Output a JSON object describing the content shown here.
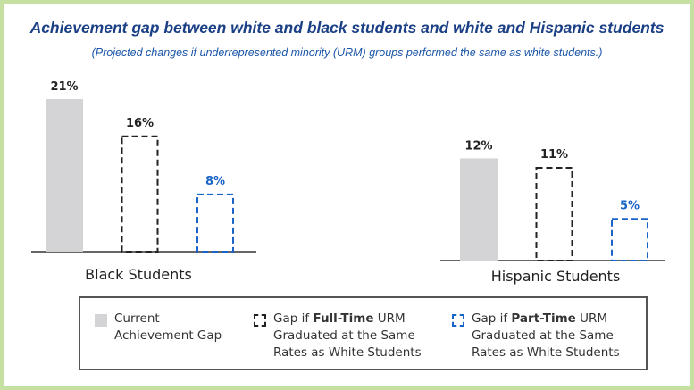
{
  "chart_data": {
    "type": "bar",
    "title": "Achievement gap between white and black students and white and Hispanic students",
    "subtitle": "(Projected changes if underrepresented minority (URM) groups performed the same as white students.)",
    "categories": [
      "Black Students",
      "Hispanic Students"
    ],
    "series": [
      {
        "name": "Current Achievement Gap",
        "values": [
          21,
          12
        ],
        "labels": [
          "21%",
          "12%"
        ],
        "color": "#d4d4d6",
        "style": "solid"
      },
      {
        "name": "Gap if Full-Time URM Graduated at the Same Rates as White Students",
        "values": [
          16,
          11
        ],
        "labels": [
          "16%",
          "11%"
        ],
        "color": "#222222",
        "style": "dashed"
      },
      {
        "name": "Gap if Part-Time URM Graduated at the Same Rates as White Students",
        "values": [
          8,
          5
        ],
        "labels": [
          "8%",
          "5%"
        ],
        "color": "#1a64c8",
        "style": "dashed"
      }
    ],
    "unit": "%",
    "grid": false,
    "legend_placement": "bottom"
  },
  "legend": {
    "current": [
      "Current",
      "Achievement Gap"
    ],
    "full": {
      "pre": "Gap if ",
      "bold": "Full-Time",
      "post": " URM",
      "l2": "Graduated at the Same",
      "l3": "Rates as White Students"
    },
    "part": {
      "pre": "Gap if ",
      "bold": "Part-Time",
      "post": " URM",
      "l2": "Graduated at the Same",
      "l3": "Rates as White Students"
    }
  },
  "colors": {
    "border": "#c5e0a0",
    "title": "#1a3f85"
  }
}
